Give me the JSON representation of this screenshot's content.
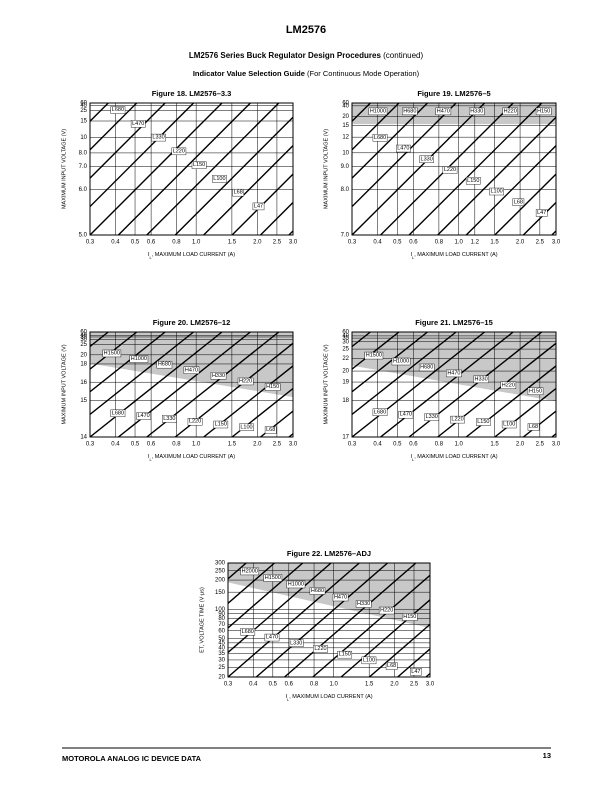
{
  "header": {
    "title": "LM2576",
    "subtitle": "LM2576 Series Buck Regulator Design Procedures",
    "subtitle_note": "(continued)",
    "guide": "Indicator Value Selection Guide",
    "guide_note": "(For Continuous Mode Operation)"
  },
  "figures": [
    {
      "title": "Figure 18. LM2576–3.3",
      "y_label": "MAXIMUM INPUT VOLTAGE (V)",
      "x_label": {
        "main": "I",
        "sub": "L",
        "rest": ", MAXIMUM LOAD CURRENT (A)"
      },
      "yticks": [
        "60",
        "40",
        "25",
        "15",
        "10",
        "8.0",
        "7.0",
        "6.0",
        "5.0"
      ],
      "xticks": [
        "0.3",
        "0.4",
        "0.5",
        "0.6",
        "0.8",
        "1.0",
        "1.5",
        "2.0",
        "2.5",
        "3.0"
      ],
      "labels": [
        "L680",
        "L470",
        "L330",
        "L220",
        "L150",
        "L100",
        "L68",
        "L47"
      ]
    },
    {
      "title": "Figure 19. LM2576–5",
      "y_label": "MAXIMUM INPUT VOLTAGE (V)",
      "x_label": {
        "main": "I",
        "sub": "L",
        "rest": ", MAXIMUM LOAD CURRENT (A)"
      },
      "yticks": [
        "60",
        "40",
        "20",
        "15",
        "12",
        "10",
        "9.0",
        "8.0",
        "7.0"
      ],
      "xticks": [
        "0.3",
        "0.4",
        "0.5",
        "0.6",
        "0.8",
        "1.0",
        "1.2",
        "1.5",
        "2.0",
        "2.5",
        "3.0"
      ],
      "labels": [
        "H1000",
        "H680",
        "H470",
        "H330",
        "H220",
        "H150",
        "L680",
        "L470",
        "L330",
        "L220",
        "L150",
        "L100",
        "L68",
        "L47"
      ]
    },
    {
      "title": "Figure 20. LM2576–12",
      "y_label": "MAXIMUM INPUT VOLTAGE (V)",
      "x_label": {
        "main": "I",
        "sub": "L",
        "rest": ", MAXIMUM LOAD CURRENT (A)"
      },
      "yticks": [
        "60",
        "40",
        "35",
        "30",
        "25",
        "20",
        "18",
        "16",
        "15",
        "14"
      ],
      "xticks": [
        "0.3",
        "0.4",
        "0.5",
        "0.6",
        "0.8",
        "1.0",
        "1.5",
        "2.0",
        "2.5",
        "3.0"
      ],
      "labels": [
        "H1500",
        "H1000",
        "H680",
        "H470",
        "H330",
        "H220",
        "H150",
        "L680",
        "L470",
        "L330",
        "L220",
        "L150",
        "L100",
        "L68"
      ]
    },
    {
      "title": "Figure 21. LM2576–15",
      "y_label": "MAXIMUM INPUT VOLTAGE (V)",
      "x_label": {
        "main": "I",
        "sub": "L",
        "rest": ", MAXIMUM LOAD CURRENT (A)"
      },
      "yticks": [
        "60",
        "40",
        "35",
        "30",
        "25",
        "22",
        "20",
        "19",
        "18",
        "17"
      ],
      "xticks": [
        "0.3",
        "0.4",
        "0.5",
        "0.6",
        "0.8",
        "1.0",
        "1.5",
        "2.0",
        "2.5",
        "3.0"
      ],
      "labels": [
        "H1500",
        "H1000",
        "H680",
        "H470",
        "H330",
        "H220",
        "H150",
        "L680",
        "L470",
        "L330",
        "L220",
        "L150",
        "L100",
        "L68"
      ]
    },
    {
      "title": "Figure 22. LM2576–ADJ",
      "y_label": "ET, VOLTAGE TIME (V·μs)",
      "x_label": {
        "main": "I",
        "sub": "L",
        "rest": ", MAXIMUM LOAD CURRENT (A)"
      },
      "yticks": [
        "300",
        "250",
        "200",
        "150",
        "100",
        "90",
        "80",
        "70",
        "60",
        "50",
        "45",
        "40",
        "35",
        "30",
        "25",
        "20"
      ],
      "xticks": [
        "0.3",
        "0.4",
        "0.5",
        "0.6",
        "0.8",
        "1.0",
        "1.5",
        "2.0",
        "2.5",
        "3.0"
      ],
      "labels": [
        "H2000",
        "H1500",
        "H1000",
        "H680",
        "H470",
        "H330",
        "H220",
        "H150",
        "L680",
        "L470",
        "L330",
        "L220",
        "L150",
        "L100",
        "L68",
        "L47"
      ]
    }
  ],
  "footer": {
    "left": "MOTOROLA ANALOG IC DEVICE DATA",
    "page": "13"
  }
}
